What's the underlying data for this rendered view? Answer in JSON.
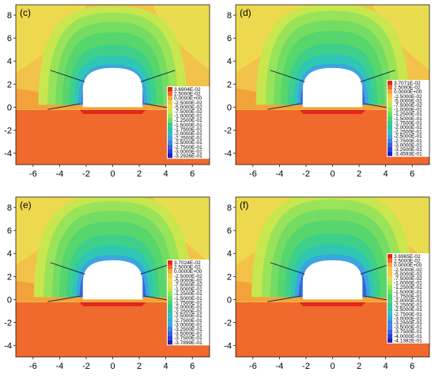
{
  "figure": {
    "axes": {
      "x_ticks": [
        "-6",
        "-4",
        "-2",
        "0",
        "2",
        "4",
        "6"
      ],
      "y_ticks": [
        "8",
        "6",
        "4",
        "2",
        "0",
        "-2",
        "-4"
      ]
    },
    "legend_colors": [
      "#e4261c",
      "#f26c2a",
      "#f9a53a",
      "#f5c848",
      "#e6de4c",
      "#c2e850",
      "#94e65a",
      "#6ede62",
      "#4bd670",
      "#34ce88",
      "#2ac6a6",
      "#30c0c8",
      "#3aa8dc",
      "#3a84e4",
      "#3461e2",
      "#2a3ed8",
      "#1c1ec6"
    ],
    "panels": [
      {
        "label": "(c)",
        "legend": [
          "3.6904E-02",
          "2.5000E-02",
          "0.0000E+00",
          "-2.5000E-02",
          "-5.0000E-02",
          "-7.5000E-02",
          "-1.0000E-01",
          "-1.2500E-01",
          "-1.5000E-01",
          "-1.7500E-01",
          "-2.0000E-01",
          "-2.2500E-01",
          "-2.5000E-01",
          "-2.7500E-01",
          "-3.0000E-01",
          "-3.2926E-01"
        ]
      },
      {
        "label": "(d)",
        "legend": [
          "3.7071E-02",
          "2.5000E-02",
          "0.0000E+00",
          "-2.5000E-02",
          "-5.0000E-02",
          "-7.5000E-02",
          "-1.0000E-01",
          "-1.2500E-01",
          "-1.5000E-01",
          "-1.7500E-01",
          "-2.0000E-01",
          "-2.2500E-01",
          "-2.5000E-01",
          "-2.7500E-01",
          "-3.0000E-01",
          "-3.2500E-01",
          "-3.4593E-01"
        ]
      },
      {
        "label": "(e)",
        "legend": [
          "3.7024E-02",
          "2.5000E-02",
          "0.0000E+00",
          "-2.5000E-02",
          "-5.0000E-02",
          "-7.5000E-02",
          "-1.0000E-01",
          "-1.2500E-01",
          "-1.5000E-01",
          "-1.7500E-01",
          "-2.0000E-01",
          "-2.2500E-01",
          "-2.5000E-01",
          "-2.7500E-01",
          "-3.0000E-01",
          "-3.2500E-01",
          "-3.5000E-01",
          "-3.7500E-01",
          "-3.7899E-01"
        ]
      },
      {
        "label": "(f)",
        "legend": [
          "3.6965E-02",
          "2.5000E-02",
          "0.0000E+00",
          "-2.5000E-02",
          "-5.0000E-02",
          "-7.5000E-02",
          "-1.0000E-01",
          "-1.2500E-01",
          "-1.5000E-01",
          "-1.7500E-01",
          "-2.0000E-01",
          "-2.2500E-01",
          "-2.5000E-01",
          "-2.7500E-01",
          "-3.0000E-01",
          "-3.2500E-01",
          "-3.5000E-01",
          "-3.7500E-01",
          "-4.0000E-01",
          "-4.1382E-01"
        ]
      }
    ]
  }
}
